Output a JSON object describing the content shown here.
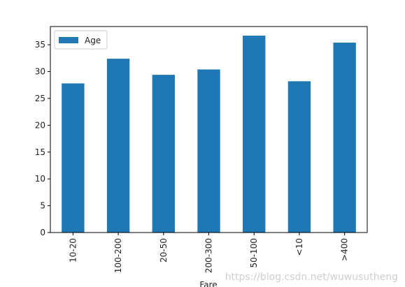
{
  "chart_data": {
    "type": "bar",
    "categories": [
      "10-20",
      "100-200",
      "20-50",
      "200-300",
      "50-100",
      "<10",
      ">400"
    ],
    "series": [
      {
        "name": "Age",
        "values": [
          27.8,
          32.4,
          29.4,
          30.4,
          36.7,
          28.2,
          35.4
        ],
        "color": "#1f77b4"
      }
    ],
    "xlabel": "Fare",
    "ylabel": "",
    "ylim": [
      0,
      38.4
    ],
    "yticks": [
      0,
      5,
      10,
      15,
      20,
      25,
      30,
      35
    ],
    "legend": {
      "label": "Age",
      "placement": "top-left"
    },
    "grid": false
  },
  "watermark": "https://blog.csdn.net/wuwusutheng"
}
